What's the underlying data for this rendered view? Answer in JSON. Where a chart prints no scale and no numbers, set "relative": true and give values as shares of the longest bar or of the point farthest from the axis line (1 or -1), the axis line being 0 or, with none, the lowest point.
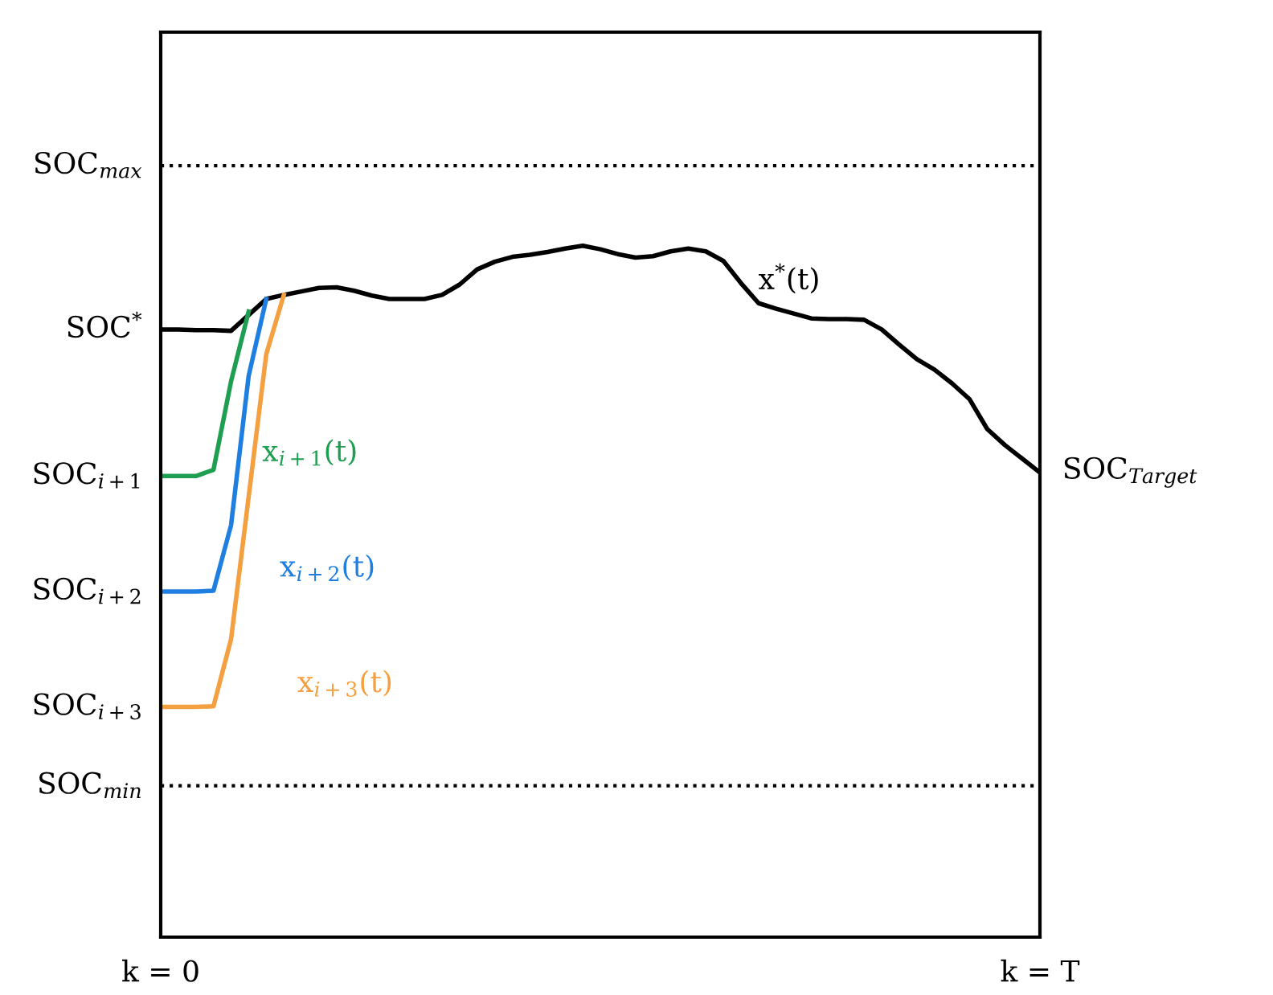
{
  "chart_data": {
    "type": "line",
    "relative": true,
    "legend": false,
    "grid": false,
    "line_style": "solid",
    "marker": "none",
    "categories": [
      "k = 0",
      null,
      null,
      null,
      null,
      null,
      null,
      null,
      null,
      null,
      null,
      null,
      null,
      null,
      null,
      null,
      null,
      null,
      null,
      null,
      null,
      null,
      null,
      null,
      null,
      null,
      null,
      null,
      null,
      null,
      null,
      null,
      null,
      null,
      null,
      null,
      null,
      null,
      null,
      null,
      null,
      null,
      null,
      null,
      null,
      null,
      null,
      null,
      null,
      null,
      "k = T"
    ],
    "series": [
      {
        "name": "x$^{*}$(t)",
        "color": "#000000",
        "values": [
          0.879,
          0.879,
          0.878,
          0.878,
          0.877,
          0.9,
          0.923,
          0.929,
          0.934,
          0.939,
          0.94,
          0.935,
          0.928,
          0.923,
          0.923,
          0.923,
          0.929,
          0.944,
          0.966,
          0.977,
          0.984,
          0.987,
          0.991,
          0.996,
          1,
          0.995,
          0.988,
          0.983,
          0.985,
          0.992,
          0.996,
          0.992,
          0.978,
          0.946,
          0.917,
          0.909,
          0.902,
          0.895,
          0.894,
          0.894,
          0.893,
          0.879,
          0.857,
          0.836,
          0.821,
          0.801,
          0.778,
          0.735,
          0.712,
          0.692,
          0.672
        ]
      },
      {
        "name": "x$_{i+1}$(t)",
        "color": "#1e9e50",
        "values": [
          0.667,
          0.667,
          0.667,
          0.676,
          0.804,
          0.905,
          null,
          null,
          null,
          null,
          null,
          null,
          null,
          null,
          null,
          null,
          null,
          null,
          null,
          null,
          null,
          null,
          null,
          null,
          null,
          null,
          null,
          null,
          null,
          null,
          null,
          null,
          null,
          null,
          null,
          null,
          null,
          null,
          null,
          null,
          null,
          null,
          null,
          null,
          null,
          null,
          null,
          null,
          null,
          null,
          null
        ]
      },
      {
        "name": "x$_{i+2}$(t)",
        "color": "#1f7fe0",
        "values": [
          0.5,
          0.5,
          0.5,
          0.501,
          0.596,
          0.812,
          0.923,
          null,
          null,
          null,
          null,
          null,
          null,
          null,
          null,
          null,
          null,
          null,
          null,
          null,
          null,
          null,
          null,
          null,
          null,
          null,
          null,
          null,
          null,
          null,
          null,
          null,
          null,
          null,
          null,
          null,
          null,
          null,
          null,
          null,
          null,
          null,
          null,
          null,
          null,
          null,
          null,
          null,
          null,
          null,
          null
        ]
      },
      {
        "name": "x$_{i+3}$(t)",
        "color": "#f5a040",
        "values": [
          0.333,
          0.333,
          0.333,
          0.334,
          0.431,
          0.637,
          0.843,
          0.929,
          null,
          null,
          null,
          null,
          null,
          null,
          null,
          null,
          null,
          null,
          null,
          null,
          null,
          null,
          null,
          null,
          null,
          null,
          null,
          null,
          null,
          null,
          null,
          null,
          null,
          null,
          null,
          null,
          null,
          null,
          null,
          null,
          null,
          null,
          null,
          null,
          null,
          null,
          null,
          null,
          null,
          null,
          null
        ]
      }
    ],
    "ref_lines": [
      {
        "axis": "y",
        "value": 1.116,
        "label": "SOC$_{max}$",
        "line_style": "dotted",
        "color": "#000000"
      },
      {
        "axis": "y",
        "value": 0.219,
        "label": "SOC$_{min}$",
        "line_style": "dotted",
        "color": "#000000"
      }
    ],
    "annotations": [
      {
        "text": "SOC$^{*}$",
        "x": "k = 0",
        "y": 0.879
      },
      {
        "text": "SOC$_{i+1}$",
        "x": "k = 0",
        "y": 0.667
      },
      {
        "text": "SOC$_{i+2}$",
        "x": "k = 0",
        "y": 0.5
      },
      {
        "text": "SOC$_{i+3}$",
        "x": "k = 0",
        "y": 0.333
      },
      {
        "text": "SOC$_{Target}$",
        "x": "k = T",
        "y": 0.672
      }
    ]
  }
}
